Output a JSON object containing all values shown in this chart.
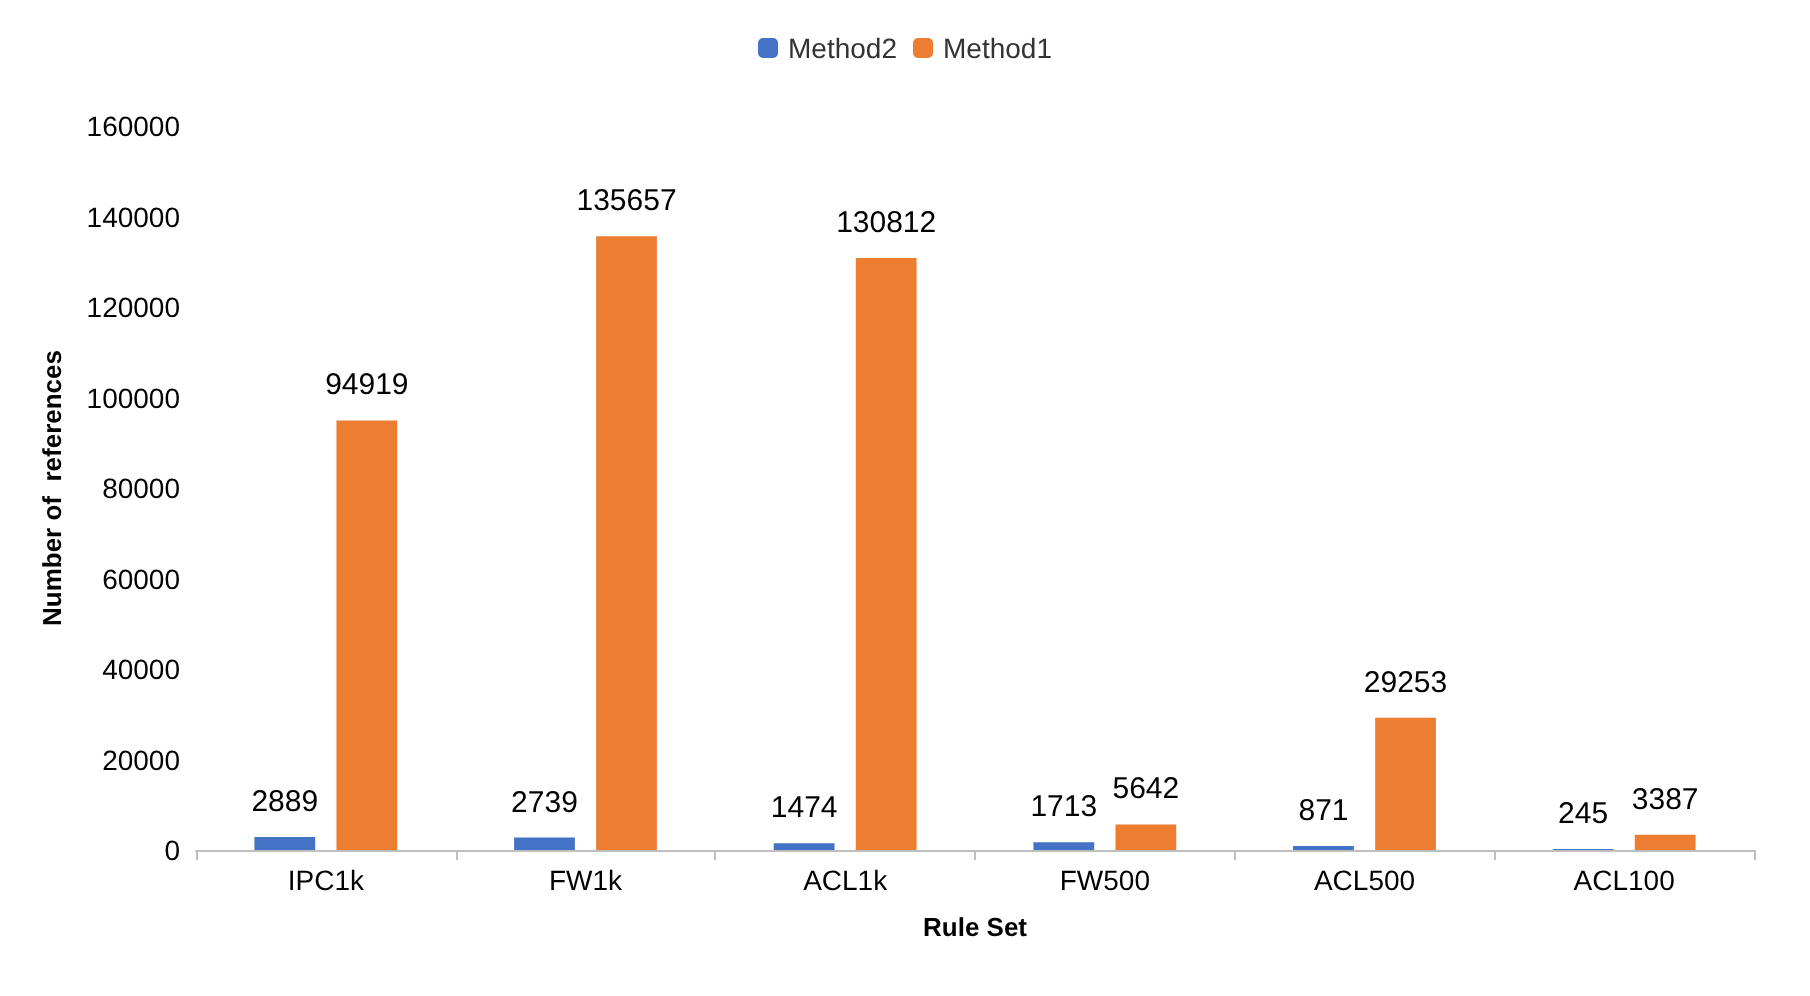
{
  "chart_data": {
    "type": "bar",
    "xlabel": "Rule Set",
    "ylabel": "Number of  references",
    "categories": [
      "IPC1k",
      "FW1k",
      "ACL1k",
      "FW500",
      "ACL500",
      "ACL100"
    ],
    "series": [
      {
        "name": "Method2",
        "color": "#4472c4",
        "values": [
          2889,
          2739,
          1474,
          1713,
          871,
          245
        ]
      },
      {
        "name": "Method1",
        "color": "#ed7d31",
        "values": [
          94919,
          135657,
          130812,
          5642,
          29253,
          3387
        ]
      }
    ],
    "ylim": [
      0,
      160000
    ],
    "yticks": [
      0,
      20000,
      40000,
      60000,
      80000,
      100000,
      120000,
      140000,
      160000
    ],
    "grid": false,
    "legend": "top",
    "data_labels": true
  }
}
